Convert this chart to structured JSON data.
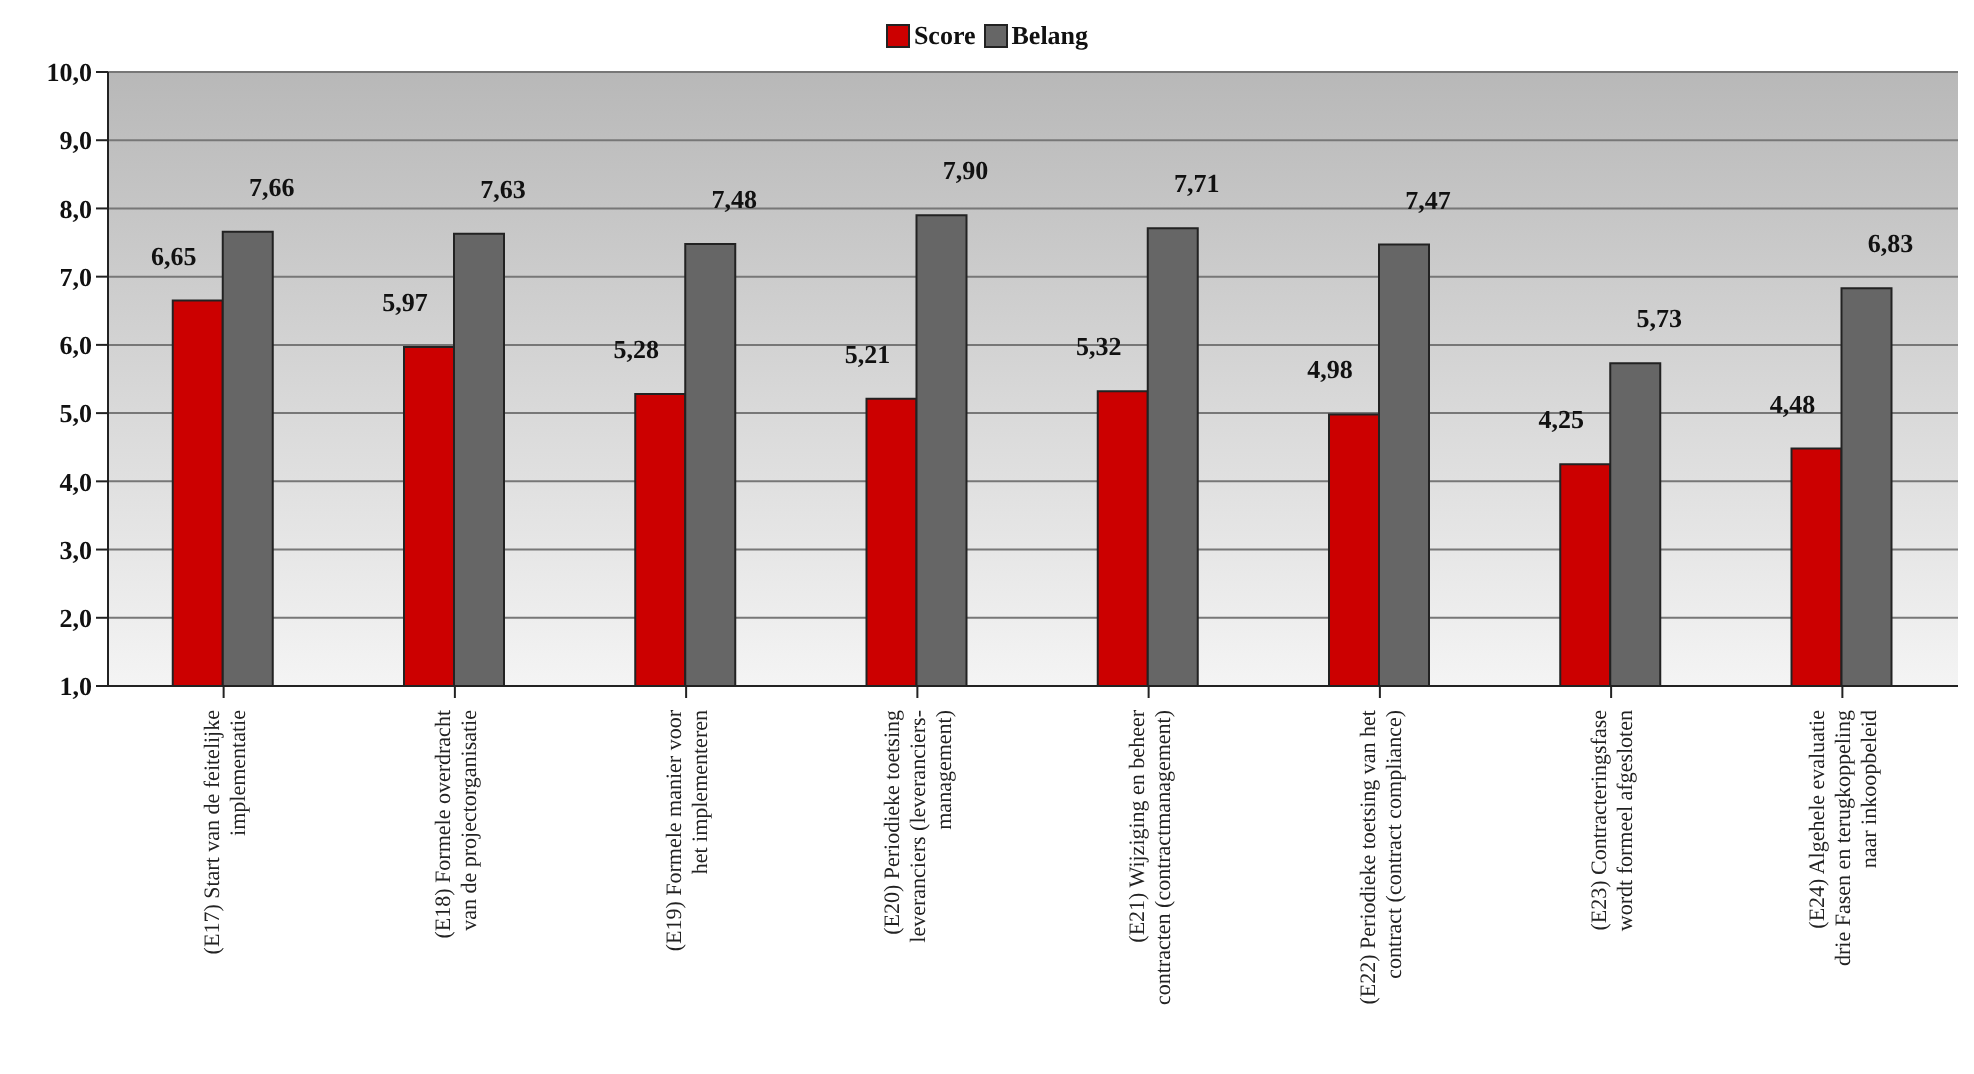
{
  "chart_data": {
    "type": "bar",
    "categories": [
      "(E17) Start van de feitelijke\nimplementatie",
      "(E18) Formele overdracht\nvan de projectorganisatie",
      "(E19) Formele manier voor\nhet implementeren",
      "(E20) Periodieke toetsing\nleveranciers (leveranciers-\nmanagement)",
      "(E21) Wijziging en beheer\ncontracten (contractmanagement)",
      "(E22) Periodieke toetsing van het\ncontract (contract compliance)",
      "(E23) Contracteringsfase\nwordt formeel afgesloten",
      "(E24) Algehele evaluatie\ndrie Fasen en terugkoppeling\nnaar inkoopbeleid"
    ],
    "series": [
      {
        "name": "Score",
        "color": "#cc0000",
        "values": [
          6.65,
          5.97,
          5.28,
          5.21,
          5.32,
          4.98,
          4.25,
          4.48
        ],
        "value_labels": [
          "6,65",
          "5,97",
          "5,28",
          "5,21",
          "5,32",
          "4,98",
          "4,25",
          "4,48"
        ]
      },
      {
        "name": "Belang",
        "color": "#666666",
        "values": [
          7.66,
          7.63,
          7.48,
          7.9,
          7.71,
          7.47,
          5.73,
          6.83
        ],
        "value_labels": [
          "7,66",
          "7,63",
          "7,48",
          "7,90",
          "7,71",
          "7,47",
          "5,73",
          "6,83"
        ]
      }
    ],
    "ylim": [
      1,
      10
    ],
    "yticks": [
      {
        "value": 1,
        "label": "1,0"
      },
      {
        "value": 2,
        "label": "2,0"
      },
      {
        "value": 3,
        "label": "3,0"
      },
      {
        "value": 4,
        "label": "4,0"
      },
      {
        "value": 5,
        "label": "5,0"
      },
      {
        "value": 6,
        "label": "6,0"
      },
      {
        "value": 7,
        "label": "7,0"
      },
      {
        "value": 8,
        "label": "8,0"
      },
      {
        "value": 9,
        "label": "9,0"
      },
      {
        "value": 10,
        "label": "10,0"
      }
    ],
    "grid": "y",
    "legend": "top"
  }
}
